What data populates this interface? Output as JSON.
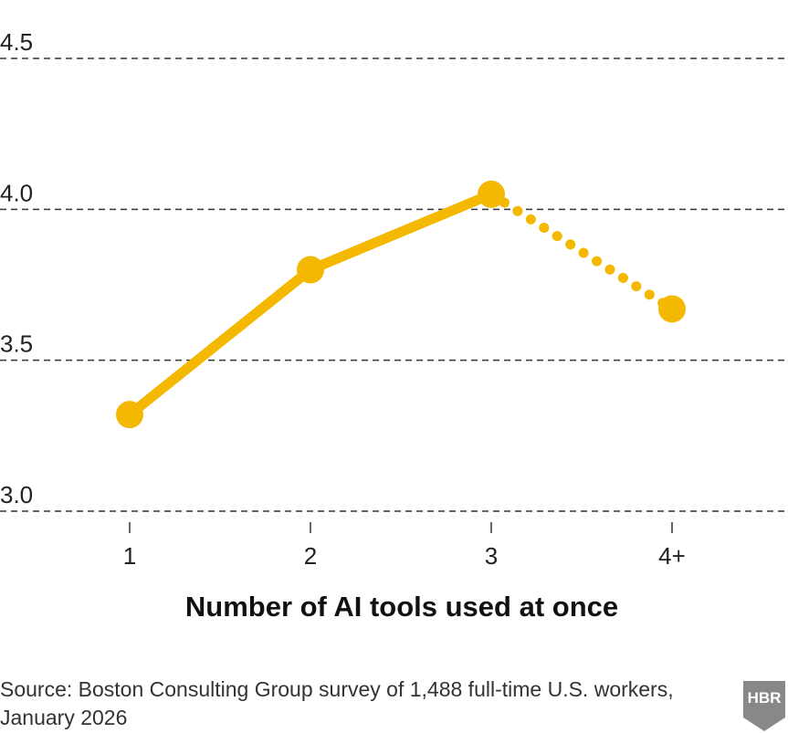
{
  "chart_data": {
    "type": "line",
    "categories": [
      "1",
      "2",
      "3",
      "4+"
    ],
    "values": [
      3.32,
      3.8,
      4.05,
      3.67
    ],
    "dotted_last_segment": true,
    "y_ticks": [
      "3.0",
      "3.5",
      "4.0",
      "4.5"
    ],
    "y_tick_values": [
      3.0,
      3.5,
      4.0,
      4.5
    ],
    "ylim": [
      3.0,
      4.5
    ],
    "xlabel": "Number of AI tools used at once",
    "ylabel": "",
    "title": "",
    "grid": "dashed horizontal",
    "line_color": "#F5B800"
  },
  "source": {
    "line1": "Source: Boston Consulting Group survey of 1,488 full-time U.S. workers,",
    "line2": "January 2026"
  },
  "logo": {
    "text": "HBR",
    "color": "#888888"
  }
}
